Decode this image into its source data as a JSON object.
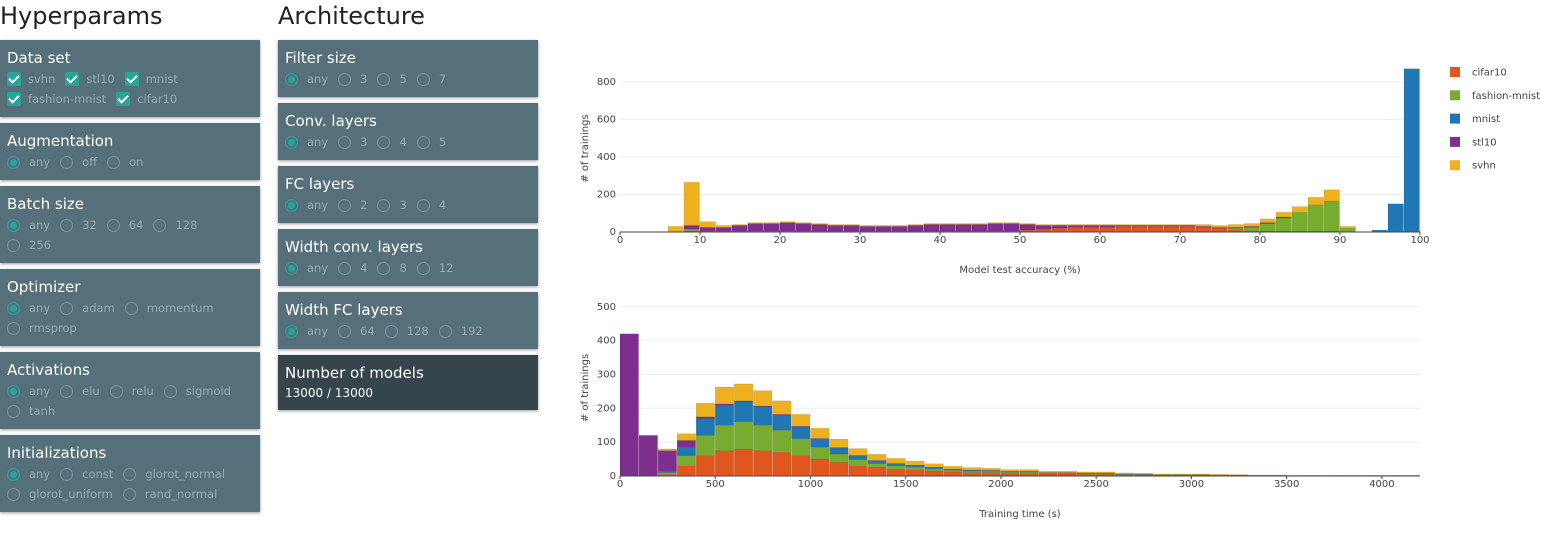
{
  "hyperparams": {
    "title": "Hyperparams",
    "panels": [
      {
        "title": "Data set",
        "kind": "checkbox",
        "options": [
          "svhn",
          "stl10",
          "mnist",
          "fashion-mnist",
          "cifar10"
        ],
        "checked": [
          true,
          true,
          true,
          true,
          true
        ]
      },
      {
        "title": "Augmentation",
        "kind": "radio",
        "options": [
          "any",
          "off",
          "on"
        ],
        "selected": 0
      },
      {
        "title": "Batch size",
        "kind": "radio",
        "options": [
          "any",
          "32",
          "64",
          "128",
          "256"
        ],
        "selected": 0
      },
      {
        "title": "Optimizer",
        "kind": "radio",
        "options": [
          "any",
          "adam",
          "momentum",
          "rmsprop"
        ],
        "selected": 0
      },
      {
        "title": "Activations",
        "kind": "radio",
        "options": [
          "any",
          "elu",
          "relu",
          "sigmoid",
          "tanh"
        ],
        "selected": 0
      },
      {
        "title": "Initializations",
        "kind": "radio",
        "options": [
          "any",
          "const",
          "glorot_normal",
          "glorot_uniform",
          "rand_normal"
        ],
        "selected": 0
      }
    ]
  },
  "architecture": {
    "title": "Architecture",
    "panels": [
      {
        "title": "Filter size",
        "kind": "radio",
        "options": [
          "any",
          "3",
          "5",
          "7"
        ],
        "selected": 0
      },
      {
        "title": "Conv. layers",
        "kind": "radio",
        "options": [
          "any",
          "3",
          "4",
          "5"
        ],
        "selected": 0
      },
      {
        "title": "FC layers",
        "kind": "radio",
        "options": [
          "any",
          "2",
          "3",
          "4"
        ],
        "selected": 0
      },
      {
        "title": "Width conv. layers",
        "kind": "radio",
        "options": [
          "any",
          "4",
          "8",
          "12"
        ],
        "selected": 0
      },
      {
        "title": "Width FC layers",
        "kind": "radio",
        "options": [
          "any",
          "64",
          "128",
          "192"
        ],
        "selected": 0
      }
    ],
    "summary": {
      "title": "Number of models",
      "text": "13000 / 13000"
    }
  },
  "chart_data": [
    {
      "type": "histogram",
      "x_label": "Model test accuracy (%)",
      "y_label": "# of trainings",
      "stacked": true,
      "legend": "top-right",
      "grid": true,
      "bins": [
        6,
        8,
        10,
        12,
        14,
        16,
        18,
        20,
        22,
        24,
        26,
        28,
        30,
        32,
        34,
        36,
        38,
        40,
        42,
        44,
        46,
        48,
        50,
        52,
        54,
        56,
        58,
        60,
        62,
        64,
        66,
        68,
        70,
        72,
        74,
        76,
        78,
        80,
        82,
        84,
        86,
        88,
        90,
        92,
        94,
        96,
        98,
        100
      ],
      "xlim": [
        0,
        100
      ],
      "xticks": [
        0,
        10,
        20,
        30,
        40,
        50,
        60,
        70,
        80,
        90,
        100
      ],
      "ylim": [
        0,
        890
      ],
      "yticks": [
        0,
        200,
        400,
        600,
        800
      ],
      "series": [
        {
          "name": "cifar10",
          "color": "#e0561f",
          "values": [
            0,
            5,
            5,
            5,
            5,
            5,
            5,
            5,
            5,
            5,
            5,
            5,
            5,
            5,
            5,
            5,
            5,
            5,
            5,
            5,
            5,
            5,
            10,
            15,
            20,
            25,
            25,
            25,
            30,
            30,
            30,
            30,
            30,
            25,
            20,
            10,
            5,
            5,
            5,
            5,
            5,
            5,
            0,
            0,
            0,
            0,
            0
          ]
        },
        {
          "name": "fashion-mnist",
          "color": "#77ac30",
          "values": [
            0,
            10,
            0,
            0,
            0,
            0,
            0,
            0,
            0,
            0,
            0,
            0,
            0,
            0,
            0,
            0,
            0,
            0,
            0,
            0,
            0,
            0,
            0,
            0,
            0,
            0,
            0,
            0,
            0,
            0,
            0,
            0,
            0,
            0,
            0,
            10,
            20,
            40,
            70,
            100,
            140,
            160,
            20,
            0,
            0,
            0,
            0
          ]
        },
        {
          "name": "mnist",
          "color": "#1f77b4",
          "values": [
            0,
            0,
            0,
            0,
            0,
            0,
            0,
            0,
            0,
            0,
            0,
            0,
            0,
            0,
            0,
            0,
            0,
            0,
            0,
            0,
            0,
            0,
            0,
            0,
            0,
            0,
            0,
            0,
            0,
            0,
            0,
            0,
            0,
            0,
            0,
            0,
            0,
            0,
            0,
            0,
            0,
            0,
            0,
            0,
            10,
            150,
            870
          ]
        },
        {
          "name": "stl10",
          "color": "#7e2f8e",
          "values": [
            0,
            20,
            20,
            20,
            30,
            40,
            40,
            45,
            40,
            35,
            30,
            30,
            25,
            25,
            25,
            30,
            35,
            35,
            35,
            35,
            40,
            40,
            30,
            20,
            15,
            10,
            10,
            10,
            5,
            5,
            5,
            5,
            5,
            5,
            5,
            5,
            5,
            5,
            5,
            0,
            0,
            0,
            0,
            0,
            0,
            0,
            0
          ]
        },
        {
          "name": "svhn",
          "color": "#edb120",
          "values": [
            30,
            230,
            30,
            10,
            5,
            5,
            5,
            5,
            5,
            5,
            5,
            5,
            5,
            5,
            5,
            5,
            5,
            5,
            5,
            5,
            5,
            5,
            5,
            5,
            5,
            5,
            5,
            5,
            5,
            5,
            5,
            5,
            5,
            10,
            10,
            15,
            15,
            20,
            25,
            30,
            40,
            60,
            10,
            0,
            0,
            0,
            0
          ]
        }
      ]
    },
    {
      "type": "histogram",
      "x_label": "Training time (s)",
      "y_label": "# of trainings",
      "stacked": true,
      "grid": true,
      "bins": [
        0,
        100,
        200,
        300,
        400,
        500,
        600,
        700,
        800,
        900,
        1000,
        1100,
        1200,
        1300,
        1400,
        1500,
        1600,
        1700,
        1800,
        1900,
        2000,
        2100,
        2200,
        2300,
        2400,
        2500,
        2600,
        2700,
        2800,
        2900,
        3000,
        3100,
        3200,
        3300,
        3400,
        3500,
        3600,
        3700,
        3800,
        3900,
        4000,
        4100,
        4200
      ],
      "xlim": [
        0,
        4200
      ],
      "xticks": [
        0,
        500,
        1000,
        1500,
        2000,
        2500,
        3000,
        3500,
        4000
      ],
      "ylim": [
        0,
        520
      ],
      "yticks": [
        0,
        100,
        200,
        300,
        400,
        500
      ],
      "series": [
        {
          "color": "#e0561f",
          "values": [
            0,
            0,
            5,
            30,
            60,
            75,
            80,
            75,
            70,
            60,
            50,
            40,
            30,
            25,
            20,
            18,
            15,
            12,
            10,
            10,
            8,
            8,
            6,
            6,
            5,
            5,
            4,
            4,
            3,
            3,
            3,
            2,
            2,
            2,
            2,
            1,
            1,
            1,
            1,
            1,
            1,
            1
          ]
        },
        {
          "color": "#77ac30",
          "values": [
            0,
            0,
            5,
            30,
            60,
            75,
            80,
            75,
            65,
            50,
            35,
            25,
            18,
            12,
            10,
            8,
            6,
            5,
            4,
            4,
            3,
            3,
            2,
            2,
            2,
            2,
            1,
            1,
            1,
            1,
            1,
            1,
            1,
            0,
            0,
            0,
            0,
            0,
            0,
            0,
            0,
            0
          ]
        },
        {
          "color": "#1f77b4",
          "values": [
            0,
            0,
            5,
            25,
            50,
            60,
            60,
            55,
            45,
            35,
            25,
            18,
            12,
            8,
            6,
            5,
            4,
            3,
            3,
            2,
            2,
            2,
            1,
            1,
            1,
            1,
            1,
            1,
            0,
            0,
            0,
            0,
            0,
            0,
            0,
            0,
            0,
            0,
            0,
            0,
            0,
            0
          ]
        },
        {
          "color": "#7e2f8e",
          "values": [
            420,
            120,
            60,
            20,
            5,
            3,
            2,
            2,
            2,
            2,
            1,
            1,
            1,
            1,
            1,
            1,
            1,
            1,
            1,
            1,
            1,
            1,
            1,
            1,
            1,
            1,
            0,
            0,
            0,
            0,
            0,
            0,
            0,
            0,
            0,
            0,
            0,
            0,
            0,
            0,
            0,
            0
          ]
        },
        {
          "color": "#edb120",
          "values": [
            0,
            0,
            5,
            20,
            40,
            50,
            50,
            45,
            40,
            35,
            30,
            25,
            20,
            18,
            15,
            12,
            10,
            8,
            7,
            6,
            5,
            5,
            4,
            4,
            3,
            3,
            3,
            2,
            2,
            2,
            2,
            2,
            1,
            1,
            1,
            1,
            1,
            1,
            1,
            1,
            1,
            1
          ]
        }
      ]
    }
  ]
}
